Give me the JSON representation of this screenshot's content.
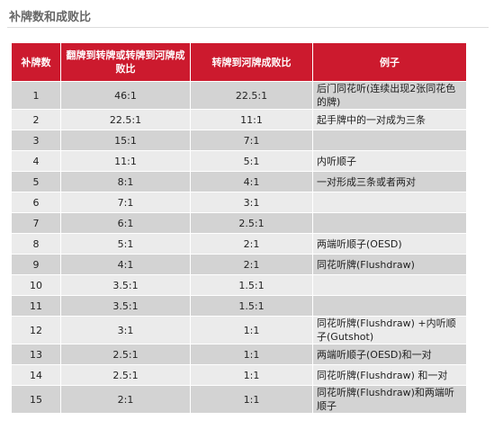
{
  "header": {
    "title": "补牌数和成败比"
  },
  "table": {
    "columns": [
      "补牌数",
      "翻牌到转牌或转牌到河牌成败比",
      "转牌到河牌成败比",
      "例子"
    ],
    "rows": [
      [
        "1",
        "46:1",
        "22.5:1",
        "后门同花听(连续出现2张同花色的牌)"
      ],
      [
        "2",
        "22.5:1",
        "11:1",
        "起手牌中的一对成为三条"
      ],
      [
        "3",
        "15:1",
        "7:1",
        ""
      ],
      [
        "4",
        "11:1",
        "5:1",
        "内听顺子"
      ],
      [
        "5",
        "8:1",
        "4:1",
        "一对形成三条或者两对"
      ],
      [
        "6",
        "7:1",
        "3:1",
        ""
      ],
      [
        "7",
        "6:1",
        "2.5:1",
        ""
      ],
      [
        "8",
        "5:1",
        "2:1",
        "两端听顺子(OESD)"
      ],
      [
        "9",
        "4:1",
        "2:1",
        "同花听牌(Flushdraw)"
      ],
      [
        "10",
        "3.5:1",
        "1.5:1",
        ""
      ],
      [
        "11",
        "3.5:1",
        "1.5:1",
        ""
      ],
      [
        "12",
        "3:1",
        "1:1",
        "同花听牌(Flushdraw) +内听顺子(Gutshot)"
      ],
      [
        "13",
        "2.5:1",
        "1:1",
        "两端听顺子(OESD)和一对"
      ],
      [
        "14",
        "2.5:1",
        "1:1",
        "同花听牌(Flushdraw) 和一对"
      ],
      [
        "15",
        "2:1",
        "1:1",
        "同花听牌(Flushdraw)和两端听顺子"
      ]
    ]
  }
}
